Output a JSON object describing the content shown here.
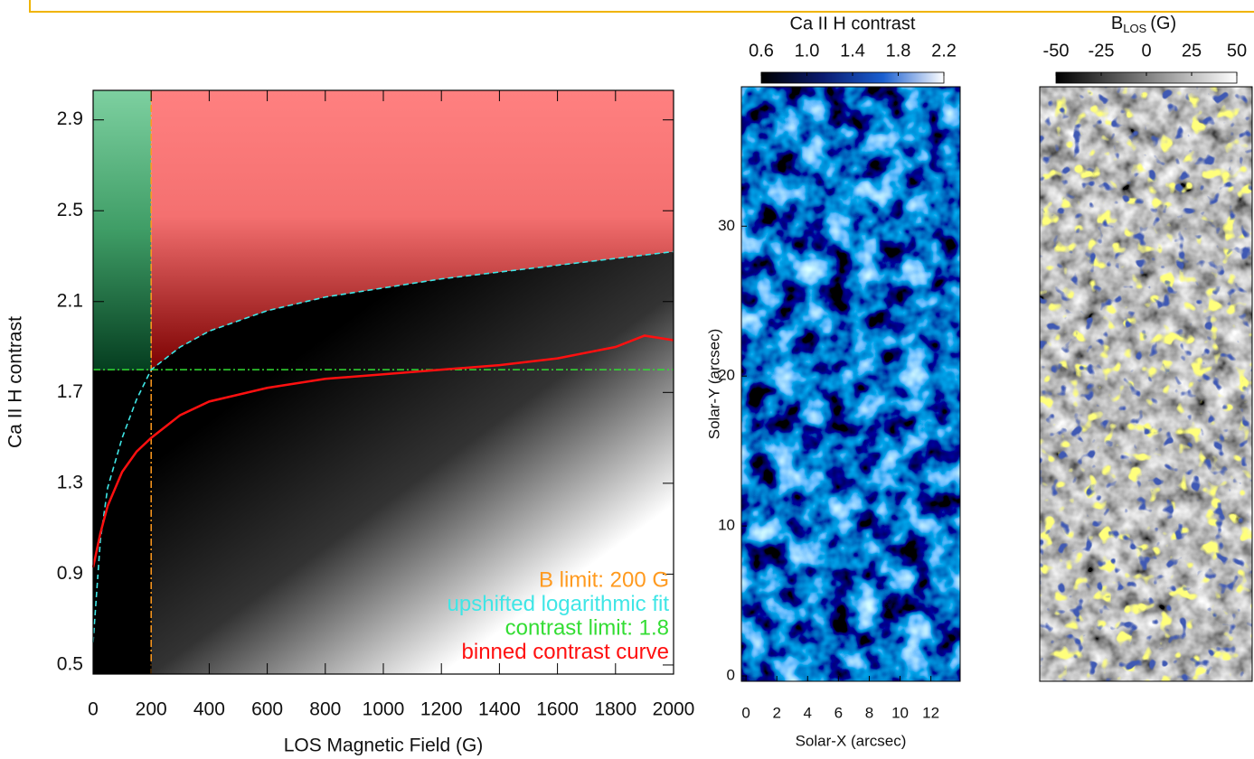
{
  "chart_data": [
    {
      "type": "scatter",
      "x_label": "LOS Magnetic Field (G)",
      "y_label": "Ca II H contrast",
      "xlim": [
        0,
        2000
      ],
      "ylim": [
        0.46,
        3.03
      ],
      "xticks": [
        0,
        200,
        400,
        600,
        800,
        1000,
        1200,
        1400,
        1600,
        1800,
        2000
      ],
      "yticks": [
        0.5,
        0.9,
        1.3,
        1.7,
        2.1,
        2.5,
        2.9
      ],
      "limits": [
        {
          "name": "B limit: 200 G",
          "color": "#ff9a1f",
          "axis": "x",
          "value": 200
        },
        {
          "name": "contrast limit: 1.8",
          "color": "#33dd33",
          "axis": "y",
          "value": 1.8
        }
      ],
      "series": [
        {
          "name": "upshifted logarithmic fit",
          "color": "#3fe6e6",
          "x": [
            0,
            25,
            50,
            100,
            150,
            200,
            300,
            400,
            600,
            800,
            1000,
            1200,
            1400,
            1600,
            1800,
            2000
          ],
          "values": [
            0.6,
            1.05,
            1.28,
            1.5,
            1.67,
            1.8,
            1.9,
            1.97,
            2.06,
            2.12,
            2.16,
            2.2,
            2.23,
            2.26,
            2.29,
            2.32
          ]
        },
        {
          "name": "binned contrast curve",
          "color": "#ff1010",
          "x": [
            0,
            25,
            50,
            100,
            150,
            200,
            300,
            400,
            600,
            800,
            1000,
            1200,
            1400,
            1600,
            1800,
            1900,
            2000
          ],
          "values": [
            0.93,
            1.08,
            1.2,
            1.35,
            1.44,
            1.5,
            1.6,
            1.66,
            1.72,
            1.76,
            1.78,
            1.8,
            1.82,
            1.85,
            1.9,
            1.95,
            1.93
          ]
        }
      ]
    },
    {
      "type": "image",
      "title": "Ca II H contrast",
      "colorbar": {
        "lim": [
          0.6,
          2.2
        ],
        "ticks": [
          0.6,
          {
            "value": 1.0,
            "label": "1.0"
          },
          1.4,
          1.8,
          2.2
        ],
        "colors": [
          "#000000",
          "#0a1a6e",
          "#1a5fd0",
          "#ffffff"
        ]
      },
      "x_label": "Solar-X (arcsec)",
      "y_label": "Solar-Y (arcsec)",
      "xlim": [
        -0.3,
        13.9
      ],
      "ylim": [
        -0.36,
        39.3
      ],
      "xticks": [
        0,
        2,
        4,
        6,
        8,
        10,
        12
      ],
      "yticks": [
        0,
        10,
        20,
        30
      ]
    },
    {
      "type": "image",
      "title": {
        "main": "B",
        "sub": "LOS",
        "unit": "(G)"
      },
      "colorbar": {
        "lim": [
          -50,
          50
        ],
        "ticks": [
          -50,
          -25,
          0,
          25,
          50
        ],
        "colors": [
          "#000000",
          "#ffffff"
        ]
      }
    }
  ]
}
